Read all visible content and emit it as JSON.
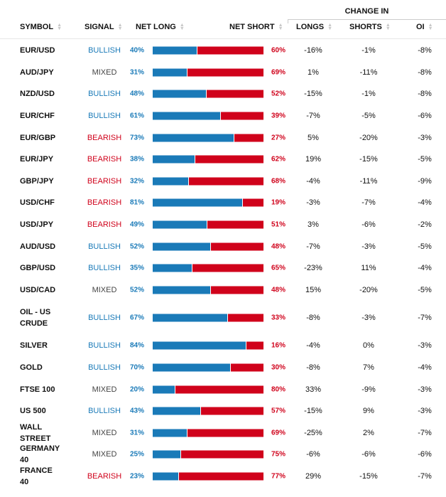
{
  "header": {
    "change_in": "CHANGE IN",
    "symbol": "SYMBOL",
    "signal": "SIGNAL",
    "net_long": "NET LONG",
    "net_short": "NET SHORT",
    "longs": "LONGS",
    "shorts": "SHORTS",
    "oi": "OI"
  },
  "colors": {
    "long": "#1a7ab8",
    "short": "#d0021b",
    "bullish": "#1a7ab8",
    "bearish": "#d0021b",
    "mixed": "#444444"
  },
  "rows": [
    {
      "symbol": "EUR/USD",
      "signal": "BULLISH",
      "long": 40,
      "short": 60,
      "longs": "-16%",
      "shorts": "-1%",
      "oi": "-8%"
    },
    {
      "symbol": "AUD/JPY",
      "signal": "MIXED",
      "long": 31,
      "short": 69,
      "longs": "1%",
      "shorts": "-11%",
      "oi": "-8%"
    },
    {
      "symbol": "NZD/USD",
      "signal": "BULLISH",
      "long": 48,
      "short": 52,
      "longs": "-15%",
      "shorts": "-1%",
      "oi": "-8%"
    },
    {
      "symbol": "EUR/CHF",
      "signal": "BULLISH",
      "long": 61,
      "short": 39,
      "longs": "-7%",
      "shorts": "-5%",
      "oi": "-6%"
    },
    {
      "symbol": "EUR/GBP",
      "signal": "BEARISH",
      "long": 73,
      "short": 27,
      "longs": "5%",
      "shorts": "-20%",
      "oi": "-3%"
    },
    {
      "symbol": "EUR/JPY",
      "signal": "BEARISH",
      "long": 38,
      "short": 62,
      "longs": "19%",
      "shorts": "-15%",
      "oi": "-5%"
    },
    {
      "symbol": "GBP/JPY",
      "signal": "BEARISH",
      "long": 32,
      "short": 68,
      "longs": "-4%",
      "shorts": "-11%",
      "oi": "-9%"
    },
    {
      "symbol": "USD/CHF",
      "signal": "BEARISH",
      "long": 81,
      "short": 19,
      "longs": "-3%",
      "shorts": "-7%",
      "oi": "-4%"
    },
    {
      "symbol": "USD/JPY",
      "signal": "BEARISH",
      "long": 49,
      "short": 51,
      "longs": "3%",
      "shorts": "-6%",
      "oi": "-2%"
    },
    {
      "symbol": "AUD/USD",
      "signal": "BULLISH",
      "long": 52,
      "short": 48,
      "longs": "-7%",
      "shorts": "-3%",
      "oi": "-5%"
    },
    {
      "symbol": "GBP/USD",
      "signal": "BULLISH",
      "long": 35,
      "short": 65,
      "longs": "-23%",
      "shorts": "11%",
      "oi": "-4%"
    },
    {
      "symbol": "USD/CAD",
      "signal": "MIXED",
      "long": 52,
      "short": 48,
      "longs": "15%",
      "shorts": "-20%",
      "oi": "-5%"
    },
    {
      "symbol": "OIL - US CRUDE",
      "signal": "BULLISH",
      "long": 67,
      "short": 33,
      "longs": "-8%",
      "shorts": "-3%",
      "oi": "-7%"
    },
    {
      "symbol": "SILVER",
      "signal": "BULLISH",
      "long": 84,
      "short": 16,
      "longs": "-4%",
      "shorts": "0%",
      "oi": "-3%"
    },
    {
      "symbol": "GOLD",
      "signal": "BULLISH",
      "long": 70,
      "short": 30,
      "longs": "-8%",
      "shorts": "7%",
      "oi": "-4%"
    },
    {
      "symbol": "FTSE 100",
      "signal": "MIXED",
      "long": 20,
      "short": 80,
      "longs": "33%",
      "shorts": "-9%",
      "oi": "-3%"
    },
    {
      "symbol": "US 500",
      "signal": "BULLISH",
      "long": 43,
      "short": 57,
      "longs": "-15%",
      "shorts": "9%",
      "oi": "-3%"
    },
    {
      "symbol": "WALL STREET",
      "signal": "MIXED",
      "long": 31,
      "short": 69,
      "longs": "-25%",
      "shorts": "2%",
      "oi": "-7%"
    },
    {
      "symbol": "GERMANY 40",
      "signal": "MIXED",
      "long": 25,
      "short": 75,
      "longs": "-6%",
      "shorts": "-6%",
      "oi": "-6%"
    },
    {
      "symbol": "FRANCE 40",
      "signal": "BEARISH",
      "long": 23,
      "short": 77,
      "longs": "29%",
      "shorts": "-15%",
      "oi": "-7%"
    }
  ]
}
